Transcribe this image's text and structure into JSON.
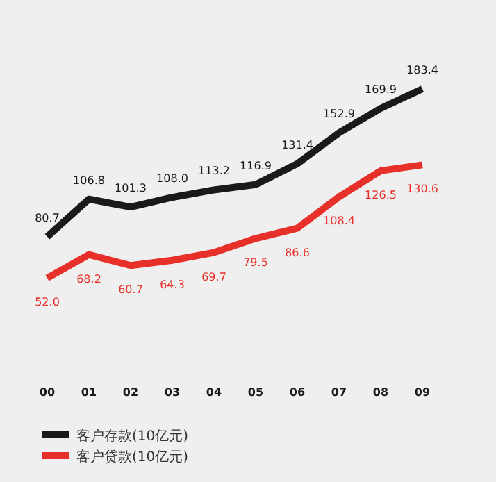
{
  "chart_data": {
    "type": "line",
    "categories": [
      "00",
      "01",
      "02",
      "03",
      "04",
      "05",
      "06",
      "07",
      "08",
      "09"
    ],
    "series": [
      {
        "name": "客户存款(10亿元)",
        "color": "#1a1a1a",
        "values": [
          80.7,
          106.8,
          101.3,
          108.0,
          113.2,
          116.9,
          131.4,
          152.9,
          169.9,
          183.4
        ],
        "value_labels": [
          "80.7",
          "106.8",
          "101.3",
          "108.0",
          "113.2",
          "116.9",
          "131.4",
          "152.9",
          "169.9",
          "183.4"
        ]
      },
      {
        "name": "客户贷款(10亿元)",
        "color": "#e8302a",
        "values": [
          52.0,
          68.2,
          60.7,
          64.3,
          69.7,
          79.5,
          86.6,
          108.4,
          126.5,
          130.6
        ],
        "value_labels": [
          "52.0",
          "68.2",
          "60.7",
          "64.3",
          "69.7",
          "79.5",
          "86.6",
          "108.4",
          "126.5",
          "130.6"
        ]
      }
    ],
    "legend": "bottom left",
    "marker": "none",
    "line_style": "solid"
  }
}
